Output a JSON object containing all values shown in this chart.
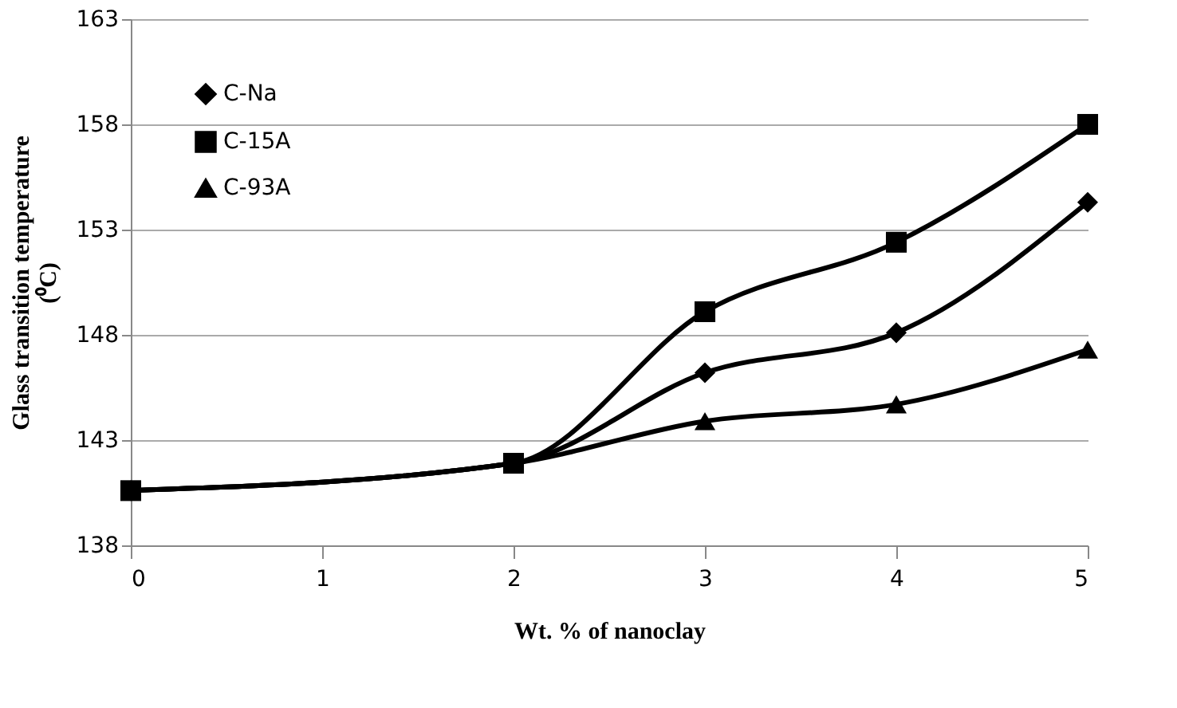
{
  "chart_data": {
    "type": "line",
    "xlabel": "Wt. % of nanoclay",
    "ylabel": "Glass transition temperature (⁰C)",
    "x": [
      0,
      2,
      3,
      4,
      5
    ],
    "series": [
      {
        "name": "C-Na",
        "color": "#000000",
        "marker": "diamond",
        "values": [
          140.6,
          141.9,
          146.2,
          148.1,
          154.3
        ]
      },
      {
        "name": "C-15A",
        "color": "#000000",
        "marker": "square",
        "values": [
          140.6,
          141.9,
          149.1,
          152.4,
          158.0
        ]
      },
      {
        "name": "C-93A",
        "color": "#000000",
        "marker": "triangle",
        "values": [
          140.6,
          141.9,
          143.9,
          144.7,
          147.3
        ]
      }
    ],
    "xlim": [
      0,
      5
    ],
    "xticks": [
      0,
      1,
      2,
      3,
      4,
      5
    ],
    "ylim": [
      138,
      163
    ],
    "yticks": [
      138,
      143,
      148,
      153,
      158,
      163
    ],
    "grid": "y",
    "legend": "top left",
    "line_style": "solid"
  }
}
